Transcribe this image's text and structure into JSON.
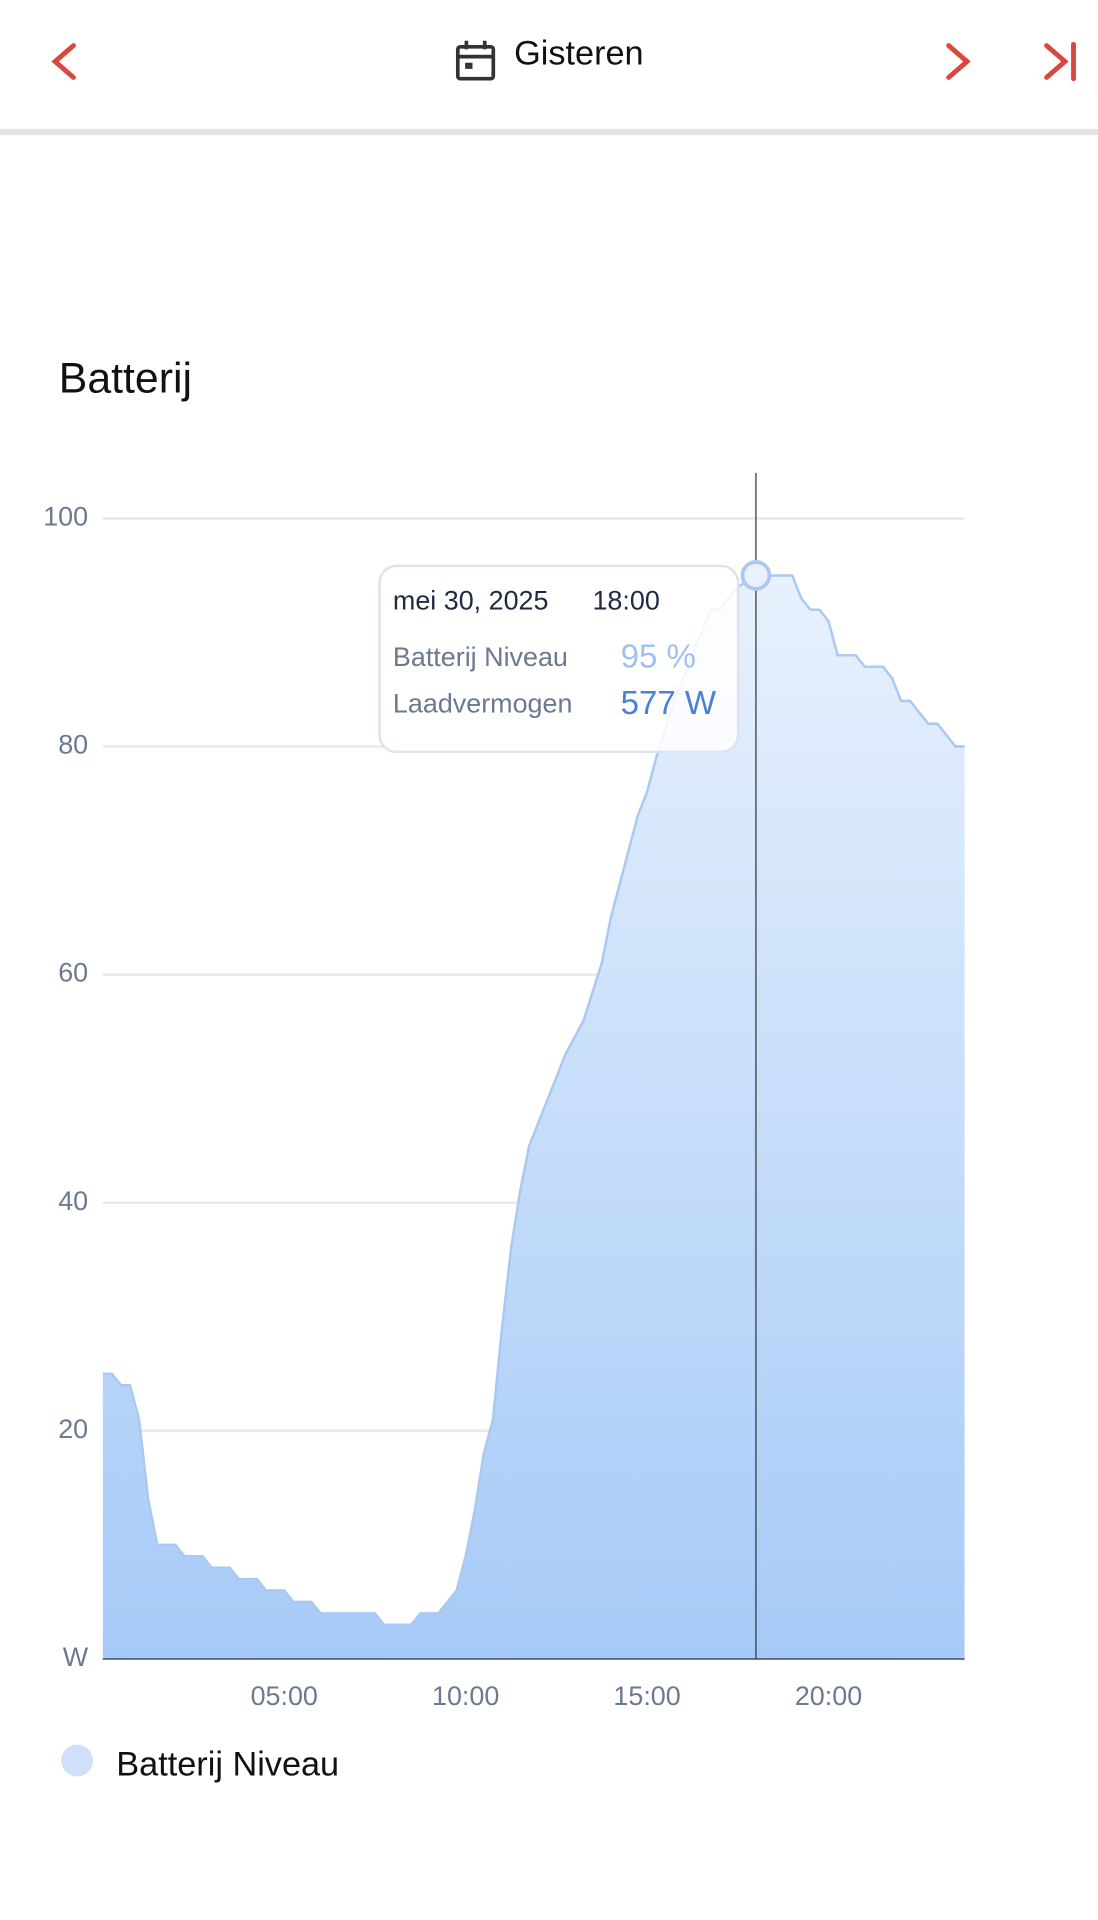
{
  "header": {
    "title": "Gisteren"
  },
  "section": {
    "title": "Batterij"
  },
  "tooltip": {
    "date": "mei 30, 2025",
    "time": "18:00",
    "rows": [
      {
        "label": "Batterij Niveau",
        "value": "95 %"
      },
      {
        "label": "Laadvermogen",
        "value": "577 W"
      }
    ]
  },
  "chart_data": {
    "type": "area",
    "x": [
      0,
      0.25,
      0.5,
      0.75,
      1,
      1.25,
      1.5,
      2,
      2.25,
      2.75,
      3,
      3.5,
      3.75,
      4.25,
      4.5,
      5,
      5.25,
      5.75,
      6,
      7.5,
      7.75,
      8.5,
      8.75,
      9.25,
      9.75,
      10,
      10.25,
      10.5,
      10.75,
      11,
      11.25,
      11.5,
      11.75,
      12.25,
      12.75,
      13.25,
      13.75,
      14,
      14.5,
      14.75,
      15,
      15.25,
      15.75,
      16.25,
      16.75,
      17,
      17.5,
      18,
      19,
      19.25,
      19.5,
      19.75,
      20,
      20.25,
      20.75,
      21,
      21.5,
      21.75,
      22,
      22.25,
      22.5,
      22.75,
      23,
      23.25,
      23.5,
      23.75
    ],
    "series": [
      {
        "name": "Batterij Niveau",
        "color": "#a9c9f2",
        "values": [
          25,
          25,
          24,
          24,
          21,
          14,
          10,
          10,
          9,
          9,
          8,
          8,
          7,
          7,
          6,
          6,
          5,
          5,
          4,
          4,
          3,
          3,
          4,
          4,
          6,
          9,
          13,
          18,
          21,
          29,
          36,
          41,
          45,
          49,
          53,
          56,
          61,
          65,
          71,
          74,
          76,
          79,
          84,
          88,
          92,
          92,
          94,
          95,
          95,
          93,
          92,
          92,
          91,
          88,
          88,
          87,
          87,
          86,
          84,
          84,
          83,
          82,
          82,
          81,
          80,
          80
        ]
      }
    ],
    "xlim": [
      0,
      23.75
    ],
    "xticks": [
      {
        "value": 5,
        "label": "05:00"
      },
      {
        "value": 10,
        "label": "10:00"
      },
      {
        "value": 15,
        "label": "15:00"
      },
      {
        "value": 20,
        "label": "20:00"
      }
    ],
    "ylim": [
      0,
      104
    ],
    "yticks": [
      {
        "value": 0,
        "label": "W"
      },
      20,
      40,
      60,
      80,
      100
    ],
    "grid": true,
    "cursor_x": 18
  }
}
